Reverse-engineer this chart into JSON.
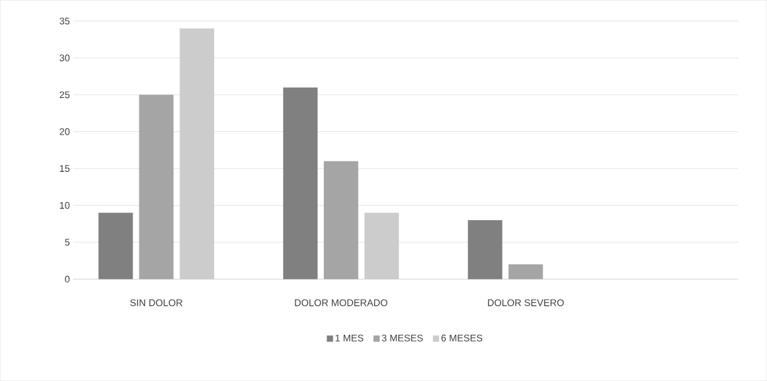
{
  "chart_data": {
    "type": "bar",
    "categories": [
      "SIN DOLOR",
      "DOLOR MODERADO",
      "DOLOR SEVERO"
    ],
    "series": [
      {
        "name": "1 MES",
        "color": "#808080",
        "values": [
          9,
          26,
          8
        ]
      },
      {
        "name": "3 MESES",
        "color": "#a5a5a5",
        "values": [
          25,
          16,
          2
        ]
      },
      {
        "name": "6 MESES",
        "color": "#cccccc",
        "values": [
          34,
          9,
          0
        ]
      }
    ],
    "ylim": [
      0,
      35
    ],
    "yticks": [
      0,
      5,
      10,
      15,
      20,
      25,
      30,
      35
    ],
    "grid": "y",
    "legend": "bottom"
  }
}
